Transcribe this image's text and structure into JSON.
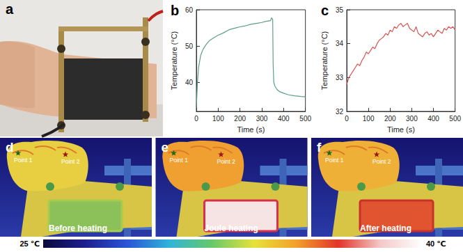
{
  "chart_data": [
    {
      "type": "line",
      "title": "b",
      "x_label": "Time (s)",
      "y_label": "Temperature (°C)",
      "x": [
        0,
        5,
        10,
        20,
        30,
        40,
        50,
        60,
        80,
        100,
        120,
        150,
        180,
        200,
        220,
        250,
        280,
        300,
        320,
        340,
        345,
        350,
        352,
        355,
        360,
        370,
        380,
        400,
        420,
        450,
        480,
        500
      ],
      "values": [
        33,
        40,
        44,
        47.5,
        49,
        50,
        50.8,
        51.5,
        52.3,
        53,
        53.5,
        54.5,
        55,
        55.3,
        55.5,
        56,
        56.3,
        56.5,
        56.8,
        57,
        57.8,
        57.3,
        45,
        40,
        39,
        38,
        37.5,
        37,
        36.6,
        36.3,
        36.1,
        36
      ],
      "color": "#5a9e8c",
      "xlim": [
        0,
        500
      ],
      "xticks": [
        0,
        100,
        200,
        300,
        400,
        500
      ],
      "ylim": [
        32,
        60
      ],
      "yticks": [
        40,
        50,
        60
      ],
      "grid": false
    },
    {
      "type": "line",
      "title": "c",
      "x_label": "Time (s)",
      "y_label": "Temperature (°C)",
      "x": [
        0,
        10,
        20,
        30,
        40,
        50,
        60,
        70,
        80,
        90,
        100,
        110,
        120,
        130,
        140,
        150,
        160,
        170,
        180,
        190,
        200,
        210,
        220,
        230,
        240,
        250,
        260,
        270,
        280,
        290,
        300,
        310,
        320,
        330,
        340,
        350,
        360,
        370,
        380,
        390,
        400,
        410,
        420,
        430,
        440,
        450,
        460,
        470,
        480,
        490,
        500
      ],
      "values": [
        32.8,
        33.0,
        33.1,
        33.2,
        33.3,
        33.4,
        33.35,
        33.5,
        33.6,
        33.75,
        33.7,
        33.8,
        33.9,
        33.85,
        34.0,
        34.1,
        34.15,
        34.2,
        34.3,
        34.25,
        34.4,
        34.35,
        34.5,
        34.45,
        34.55,
        34.6,
        34.5,
        34.55,
        34.6,
        34.45,
        34.4,
        34.35,
        34.5,
        34.3,
        34.25,
        34.2,
        34.3,
        34.35,
        34.25,
        34.3,
        34.2,
        34.3,
        34.4,
        34.35,
        34.3,
        34.45,
        34.4,
        34.5,
        34.45,
        34.5,
        34.4
      ],
      "color": "#d9534f",
      "xlim": [
        0,
        500
      ],
      "xticks": [
        0,
        100,
        200,
        300,
        400,
        500
      ],
      "ylim": [
        32,
        35
      ],
      "yticks": [
        32,
        33,
        34,
        35
      ],
      "grid": false
    }
  ],
  "photo": {
    "label": "a"
  },
  "thermal_images": [
    {
      "label": "d",
      "caption": "Before heating",
      "points": [
        "Point 1",
        "Point 2"
      ],
      "state": "before"
    },
    {
      "label": "e",
      "caption": "Joule heating",
      "points": [
        "Point 1",
        "Point 2"
      ],
      "state": "heating"
    },
    {
      "label": "f",
      "caption": "After heating",
      "points": [
        "Point 1",
        "Point 2"
      ],
      "state": "after"
    }
  ],
  "colorbar": {
    "range": [
      25,
      40
    ],
    "ticks": [
      {
        "value": 25,
        "label": "25 ℃"
      },
      {
        "value": 40,
        "label": "40 ℃"
      }
    ]
  }
}
